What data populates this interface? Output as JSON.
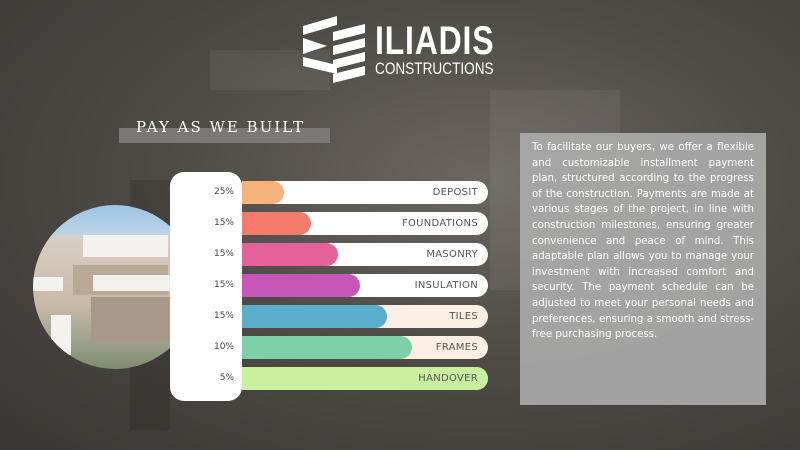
{
  "brand": {
    "name": "ILIADIS",
    "subtitle": "CONSTRUCTIONS"
  },
  "section_title": "PAY AS WE BUILT",
  "stages": [
    {
      "percent": "25%",
      "label": "DEPOSIT",
      "color": "#f5b27a",
      "track": "#ffffff",
      "progress": 0.17
    },
    {
      "percent": "15%",
      "label": "FOUNDATIONS",
      "color": "#f47a6a",
      "track": "#ffffff",
      "progress": 0.28
    },
    {
      "percent": "15%",
      "label": "MASONRY",
      "color": "#e5619a",
      "track": "#ffffff",
      "progress": 0.39
    },
    {
      "percent": "15%",
      "label": "INSULATION",
      "color": "#c656b8",
      "track": "#ffffff",
      "progress": 0.48
    },
    {
      "percent": "15%",
      "label": "TILES",
      "color": "#5aaecb",
      "track": "#fbefe4",
      "progress": 0.59
    },
    {
      "percent": "10%",
      "label": "FRAMES",
      "color": "#7dd0a8",
      "track": "#fbefe4",
      "progress": 0.69
    },
    {
      "percent": "5%",
      "label": "HANDOVER",
      "color": "#c9ef9f",
      "track": "#c9ef9f",
      "progress": 1.0
    }
  ],
  "description": "To facilitate our buyers, we offer a flexible and customizable installment payment plan, structured according to the progress of the construction. Payments are made at various stages of the project, in line with construction milestones, ensuring greater convenience and peace of mind. This adaptable plan allows you to manage your investment with increased comfort and security. The payment schedule can be adjusted to meet your personal needs and preferences, ensuring a smooth and stress-free purchasing process."
}
